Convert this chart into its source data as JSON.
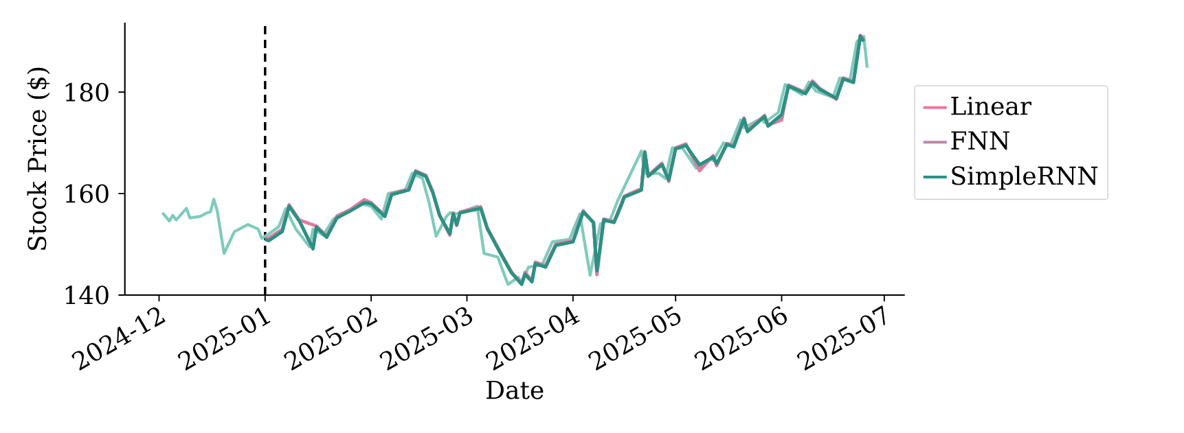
{
  "chart_data": {
    "type": "line",
    "xlabel": "Date",
    "ylabel": "Stock Price ($)",
    "xlim": [
      "2024-11-21",
      "2025-07-07"
    ],
    "ylim": [
      140,
      193.7
    ],
    "xticks": [
      "2024-12",
      "2025-01",
      "2025-02",
      "2025-03",
      "2025-04",
      "2025-05",
      "2025-06",
      "2025-07"
    ],
    "yticks": [
      140,
      160,
      180
    ],
    "legend": "right",
    "line_style": "solid",
    "ref_lines": [
      {
        "axis": "x",
        "value": "2025-01-01",
        "color": "#000000",
        "line_style": "dashed"
      }
    ],
    "series": [
      {
        "color": "#7fcbbb",
        "x": [
          "2024-12-02",
          "2024-12-04",
          "2024-12-05",
          "2024-12-06",
          "2024-12-09",
          "2024-12-10",
          "2024-12-13",
          "2024-12-15",
          "2024-12-16",
          "2024-12-17",
          "2024-12-18",
          "2024-12-20",
          "2024-12-23",
          "2024-12-27",
          "2024-12-30",
          "2024-12-31",
          "2025-01-02",
          "2025-01-05",
          "2025-01-07",
          "2025-01-10",
          "2025-01-14",
          "2025-01-15",
          "2025-01-18",
          "2025-01-21",
          "2025-01-25",
          "2025-01-29",
          "2025-02-01",
          "2025-02-04",
          "2025-02-06",
          "2025-02-11",
          "2025-02-13",
          "2025-02-16",
          "2025-02-18",
          "2025-02-20",
          "2025-02-23",
          "2025-02-24",
          "2025-02-26",
          "2025-03-04",
          "2025-03-06",
          "2025-03-10",
          "2025-03-13",
          "2025-03-16",
          "2025-03-17",
          "2025-03-19",
          "2025-03-23",
          "2025-03-26",
          "2025-03-31",
          "2025-04-03",
          "2025-04-06",
          "2025-04-09",
          "2025-04-12",
          "2025-04-14",
          "2025-04-21",
          "2025-04-22",
          "2025-04-26",
          "2025-04-28",
          "2025-04-30",
          "2025-05-03",
          "2025-05-07",
          "2025-05-11",
          "2025-05-12",
          "2025-05-15",
          "2025-05-17",
          "2025-05-20",
          "2025-05-21",
          "2025-05-26",
          "2025-05-27",
          "2025-05-31",
          "2025-06-02",
          "2025-06-07",
          "2025-06-09",
          "2025-06-11",
          "2025-06-16",
          "2025-06-18",
          "2025-06-21",
          "2025-06-23",
          "2025-06-25",
          "2025-06-26"
        ],
        "values": [
          156.2,
          154.6,
          155.7,
          154.8,
          157.1,
          155.2,
          155.5,
          156.2,
          156.4,
          158.9,
          156.6,
          148.2,
          152.5,
          153.9,
          153.0,
          151.2,
          152.0,
          153.5,
          157.0,
          153.0,
          149.5,
          153.0,
          151.8,
          155.0,
          156.5,
          158.0,
          157.5,
          155.0,
          160.0,
          160.8,
          164.0,
          163.0,
          158.0,
          151.6,
          155.5,
          156.2,
          156.0,
          157.5,
          148.2,
          147.5,
          142.1,
          143.5,
          142.5,
          145.5,
          146.0,
          150.5,
          151.0,
          156.0,
          143.9,
          154.0,
          155.0,
          158.5,
          168.4,
          164.0,
          164.0,
          163.0,
          169.0,
          169.0,
          165.0,
          166.8,
          166.5,
          170.0,
          169.5,
          174.5,
          173.0,
          174.8,
          174.0,
          176.0,
          181.5,
          179.5,
          182.0,
          180.2,
          179.0,
          182.8,
          182.5,
          190.0,
          191.0,
          184.8
        ]
      },
      {
        "name": "Linear",
        "color": "#e8799c",
        "x": [
          "2025-01-01",
          "2025-01-02",
          "2025-01-06",
          "2025-01-08",
          "2025-01-11",
          "2025-01-15",
          "2025-01-16",
          "2025-01-19",
          "2025-01-22",
          "2025-01-26",
          "2025-01-30",
          "2025-02-01",
          "2025-02-05",
          "2025-02-07",
          "2025-02-12",
          "2025-02-14",
          "2025-02-17",
          "2025-02-19",
          "2025-02-21",
          "2025-02-24",
          "2025-02-25",
          "2025-02-26",
          "2025-02-27",
          "2025-03-05",
          "2025-03-07",
          "2025-03-11",
          "2025-03-14",
          "2025-03-17",
          "2025-03-18",
          "2025-03-20",
          "2025-03-21",
          "2025-03-24",
          "2025-03-27",
          "2025-04-01",
          "2025-04-04",
          "2025-04-07",
          "2025-04-08",
          "2025-04-10",
          "2025-04-13",
          "2025-04-15",
          "2025-04-16",
          "2025-04-21",
          "2025-04-22",
          "2025-04-23",
          "2025-04-27",
          "2025-04-29",
          "2025-05-01",
          "2025-05-04",
          "2025-05-08",
          "2025-05-12",
          "2025-05-13",
          "2025-05-16",
          "2025-05-18",
          "2025-05-21",
          "2025-05-22",
          "2025-05-27",
          "2025-05-28",
          "2025-06-01",
          "2025-06-03",
          "2025-06-08",
          "2025-06-10",
          "2025-06-12",
          "2025-06-17",
          "2025-06-19",
          "2025-06-22",
          "2025-06-24",
          "2025-06-25"
        ],
        "values": [
          151.3,
          151.2,
          153.0,
          157.8,
          154.8,
          null,
          153.6,
          151.6,
          155.6,
          156.9,
          158.8,
          158.2,
          155.7,
          160.0,
          160.9,
          164.5,
          163.6,
          160.4,
          155.8,
          151.8,
          156.2,
          153.7,
          156.4,
          157.4,
          153.2,
          148.2,
          144.6,
          142.3,
          144.5,
          142.8,
          146.5,
          145.8,
          150.1,
          150.7,
          156.6,
          154.2,
          144.0,
          155.0,
          154.5,
          157.8,
          159.5,
          161.0,
          168.3,
          163.6,
          166.0,
          162.4,
          169.0,
          169.8,
          164.5,
          167.5,
          165.5,
          169.9,
          169.5,
          174.9,
          172.5,
          175.4,
          173.5,
          174.5,
          181.4,
          179.9,
          182.2,
          180.8,
          178.6,
          182.8,
          182.1,
          191.2,
          190.3
        ]
      },
      {
        "name": "FNN",
        "color": "#b98aa8",
        "x": [
          "2025-01-01",
          "2025-01-02",
          "2025-01-06",
          "2025-01-08",
          "2025-01-11",
          "2025-01-15",
          "2025-01-16",
          "2025-01-19",
          "2025-01-22",
          "2025-01-26",
          "2025-01-30",
          "2025-02-01",
          "2025-02-05",
          "2025-02-07",
          "2025-02-12",
          "2025-02-14",
          "2025-02-17",
          "2025-02-19",
          "2025-02-21",
          "2025-02-24",
          "2025-02-25",
          "2025-02-26",
          "2025-02-27",
          "2025-03-05",
          "2025-03-07",
          "2025-03-11",
          "2025-03-14",
          "2025-03-17",
          "2025-03-18",
          "2025-03-20",
          "2025-03-21",
          "2025-03-24",
          "2025-03-27",
          "2025-04-01",
          "2025-04-04",
          "2025-04-07",
          "2025-04-08",
          "2025-04-10",
          "2025-04-13",
          "2025-04-15",
          "2025-04-16",
          "2025-04-21",
          "2025-04-22",
          "2025-04-23",
          "2025-04-27",
          "2025-04-29",
          "2025-05-01",
          "2025-05-04",
          "2025-05-08",
          "2025-05-12",
          "2025-05-13",
          "2025-05-16",
          "2025-05-18",
          "2025-05-21",
          "2025-05-22",
          "2025-05-27",
          "2025-05-28",
          "2025-06-01",
          "2025-06-03",
          "2025-06-08",
          "2025-06-10",
          "2025-06-12",
          "2025-06-17",
          "2025-06-19",
          "2025-06-22",
          "2025-06-24",
          "2025-06-25"
        ],
        "values": [
          151.1,
          150.9,
          152.7,
          157.6,
          154.7,
          149.2,
          153.5,
          151.5,
          155.4,
          156.7,
          158.4,
          158.1,
          155.6,
          159.9,
          160.8,
          164.4,
          163.5,
          160.3,
          155.7,
          152.0,
          156.1,
          153.8,
          156.3,
          157.2,
          153.1,
          148.1,
          144.5,
          142.2,
          144.3,
          142.7,
          146.3,
          145.6,
          149.9,
          150.6,
          156.5,
          154.3,
          144.5,
          154.9,
          154.4,
          157.6,
          159.4,
          160.8,
          168.2,
          163.5,
          165.8,
          162.6,
          168.9,
          169.6,
          165.2,
          167.3,
          165.7,
          169.8,
          169.3,
          174.8,
          172.3,
          175.3,
          173.4,
          175.0,
          181.3,
          179.8,
          182.0,
          180.7,
          178.7,
          182.7,
          182.0,
          191.1,
          190.2
        ]
      },
      {
        "name": "SimpleRNN",
        "color": "#2a9183",
        "x": [
          "2025-01-01",
          "2025-01-02",
          "2025-01-06",
          "2025-01-08",
          "2025-01-11",
          "2025-01-15",
          "2025-01-16",
          "2025-01-19",
          "2025-01-22",
          "2025-01-26",
          "2025-01-30",
          "2025-02-01",
          "2025-02-05",
          "2025-02-07",
          "2025-02-12",
          "2025-02-14",
          "2025-02-17",
          "2025-02-19",
          "2025-02-21",
          "2025-02-24",
          "2025-02-25",
          "2025-02-26",
          "2025-02-27",
          "2025-03-05",
          "2025-03-07",
          "2025-03-11",
          "2025-03-14",
          "2025-03-17",
          "2025-03-18",
          "2025-03-20",
          "2025-03-21",
          "2025-03-24",
          "2025-03-27",
          "2025-04-01",
          "2025-04-04",
          "2025-04-07",
          "2025-04-08",
          "2025-04-10",
          "2025-04-13",
          "2025-04-15",
          "2025-04-16",
          "2025-04-21",
          "2025-04-22",
          "2025-04-23",
          "2025-04-27",
          "2025-04-29",
          "2025-05-01",
          "2025-05-04",
          "2025-05-08",
          "2025-05-12",
          "2025-05-13",
          "2025-05-16",
          "2025-05-18",
          "2025-05-21",
          "2025-05-22",
          "2025-05-27",
          "2025-05-28",
          "2025-06-01",
          "2025-06-03",
          "2025-06-08",
          "2025-06-10",
          "2025-06-12",
          "2025-06-17",
          "2025-06-19",
          "2025-06-22",
          "2025-06-24",
          "2025-06-25"
        ],
        "values": [
          151.0,
          150.7,
          152.5,
          157.5,
          154.6,
          149.1,
          153.4,
          151.4,
          155.2,
          156.6,
          158.2,
          158.0,
          155.5,
          159.8,
          160.7,
          164.3,
          163.4,
          160.2,
          155.7,
          152.1,
          156.0,
          153.9,
          156.2,
          157.1,
          153.0,
          148.0,
          144.4,
          142.1,
          144.1,
          142.6,
          146.2,
          145.5,
          149.8,
          150.5,
          156.4,
          154.3,
          144.8,
          154.8,
          154.3,
          157.5,
          159.3,
          160.7,
          168.1,
          163.4,
          165.7,
          162.7,
          168.8,
          169.5,
          165.7,
          167.2,
          165.9,
          169.7,
          169.2,
          174.7,
          172.2,
          175.2,
          173.3,
          175.6,
          181.2,
          179.7,
          181.9,
          180.6,
          178.8,
          182.6,
          181.9,
          191.0,
          190.0
        ]
      }
    ]
  }
}
